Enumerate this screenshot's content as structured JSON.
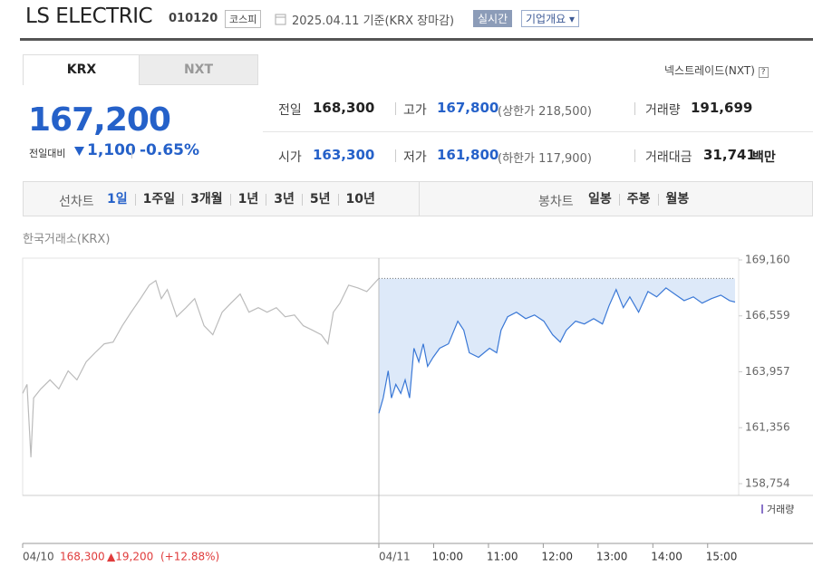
{
  "header": {
    "name": "LS ELECTRIC",
    "code": "010120",
    "market": "코스피",
    "date": "2025.04.11 기준(KRX 장마감)",
    "realtime": "실시간",
    "company": "기업개요"
  },
  "tabs": [
    "KRX",
    "NXT"
  ],
  "nxt_link": "넥스트레이드(NXT)",
  "price": {
    "current": "167,200",
    "change_label": "전일대비",
    "change": "1,100",
    "change_rate": "-0.65%"
  },
  "stats": [
    {
      "label": "전일",
      "value": "168,300"
    },
    {
      "label": "고가",
      "value": "167,800",
      "sub": "(상한가 218,500)"
    },
    {
      "label": "거래량",
      "value": "191,699"
    },
    {
      "label": "시가",
      "value": "163,300"
    },
    {
      "label": "저가",
      "value": "161,800",
      "sub": "(하한가 117,900)"
    },
    {
      "label": "거래대금",
      "value": "31,741",
      "unit": "백만"
    }
  ],
  "periods": {
    "line_label": "선차트",
    "items": [
      "1일",
      "1주일",
      "3개월",
      "1년",
      "3년",
      "5년",
      "10년"
    ],
    "candle_label": "봉차트",
    "candle_items": [
      "일봉",
      "주봉",
      "월봉"
    ]
  },
  "chart_data": {
    "type": "line",
    "source": "한국거래소(KRX)",
    "volume_label": "거래량",
    "ylim": [
      158206,
      169244
    ],
    "yticks": [
      {
        "value": 169160,
        "label": "169,160"
      },
      {
        "value": 166559,
        "label": "166,559"
      },
      {
        "value": 163957,
        "label": "163,957"
      },
      {
        "value": 161356,
        "label": "161,356"
      },
      {
        "value": 158754,
        "label": "158,754"
      }
    ],
    "prev_summary": {
      "close": "168,300",
      "change": "▲19,200",
      "rate": "(+12.88%)"
    },
    "days": [
      {
        "label": "04/10",
        "color": "#bbbbbb",
        "xlim": [
          9,
          15.5
        ],
        "x": [
          9.0,
          9.08,
          9.15,
          9.2,
          9.33,
          9.5,
          9.66,
          9.83,
          9.99,
          10.16,
          10.32,
          10.49,
          10.65,
          10.82,
          10.98,
          11.15,
          11.31,
          11.43,
          11.53,
          11.64,
          11.81,
          11.98,
          12.14,
          12.31,
          12.47,
          12.64,
          12.8,
          12.97,
          13.13,
          13.3,
          13.46,
          13.63,
          13.79,
          13.96,
          14.12,
          14.29,
          14.45,
          14.57,
          14.67,
          14.79,
          14.95,
          15.12,
          15.28,
          15.5
        ],
        "values": [
          162950,
          163370,
          159980,
          162740,
          163160,
          163580,
          163160,
          164000,
          163580,
          164420,
          164840,
          165260,
          165340,
          166100,
          166730,
          167360,
          167990,
          168200,
          167360,
          167780,
          166520,
          166940,
          167360,
          166100,
          165680,
          166730,
          167150,
          167570,
          166730,
          166940,
          166730,
          166940,
          166520,
          166600,
          166100,
          165890,
          165680,
          165260,
          166730,
          167150,
          167990,
          167860,
          167690,
          168300
        ]
      },
      {
        "label": "04/11",
        "color": "#3a78d6",
        "xlim": [
          9,
          15.5
        ],
        "xticks": [
          {
            "value": 10,
            "label": "10:00"
          },
          {
            "value": 11,
            "label": "11:00"
          },
          {
            "value": 12,
            "label": "12:00"
          },
          {
            "value": 13,
            "label": "13:00"
          },
          {
            "value": 14,
            "label": "14:00"
          },
          {
            "value": 15,
            "label": "15:00"
          }
        ],
        "x": [
          9.0,
          9.08,
          9.17,
          9.23,
          9.31,
          9.4,
          9.48,
          9.56,
          9.64,
          9.73,
          9.81,
          9.89,
          9.99,
          10.11,
          10.27,
          10.44,
          10.55,
          10.65,
          10.82,
          11.02,
          11.15,
          11.23,
          11.35,
          11.51,
          11.68,
          11.84,
          12.01,
          12.17,
          12.31,
          12.42,
          12.59,
          12.75,
          12.92,
          13.08,
          13.2,
          13.33,
          13.46,
          13.58,
          13.74,
          13.91,
          14.07,
          14.24,
          14.4,
          14.57,
          14.74,
          14.9,
          15.07,
          15.24,
          15.4,
          15.5
        ],
        "values": [
          162027,
          162740,
          164000,
          162740,
          163370,
          162950,
          163580,
          162740,
          165050,
          164420,
          165260,
          164210,
          164630,
          165050,
          165260,
          166310,
          165890,
          164840,
          164630,
          165050,
          164840,
          165890,
          166520,
          166730,
          166430,
          166600,
          166310,
          165680,
          165340,
          165890,
          166310,
          166180,
          166430,
          166180,
          167020,
          167780,
          166940,
          167440,
          166730,
          167690,
          167440,
          167860,
          167570,
          167270,
          167440,
          167150,
          167360,
          167520,
          167270,
          167200
        ]
      }
    ]
  }
}
